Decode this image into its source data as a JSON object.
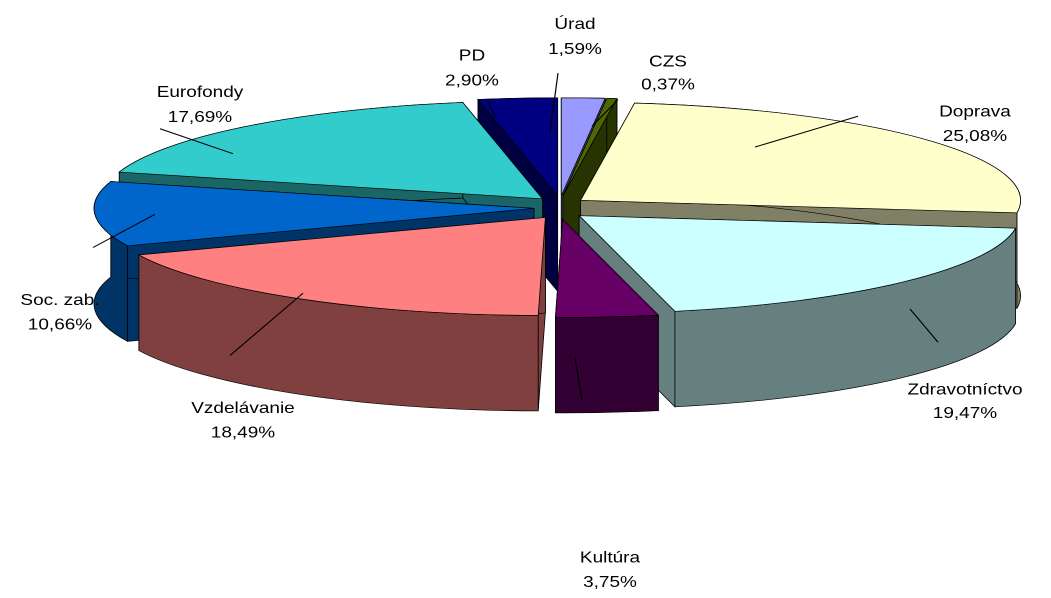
{
  "chart_data": {
    "type": "pie",
    "categories": [
      "Úrad",
      "CZS",
      "Doprava",
      "Zdravotníctvo",
      "Kultúra",
      "Vzdelávanie",
      "Soc. zab.",
      "Eurofondy",
      "PD"
    ],
    "values": [
      1.59,
      0.37,
      25.08,
      19.47,
      3.75,
      18.49,
      10.66,
      17.69,
      2.9
    ],
    "value_labels": [
      "1,59%",
      "0,37%",
      "25,08%",
      "19,47%",
      "3,75%",
      "18,49%",
      "10,66%",
      "17,69%",
      "2,90%"
    ],
    "colors": [
      "#9999ff",
      "#4d6600",
      "#ffffcc",
      "#ccffff",
      "#660066",
      "#ff8080",
      "#0066cc",
      "#33cccc",
      "#000080"
    ]
  }
}
